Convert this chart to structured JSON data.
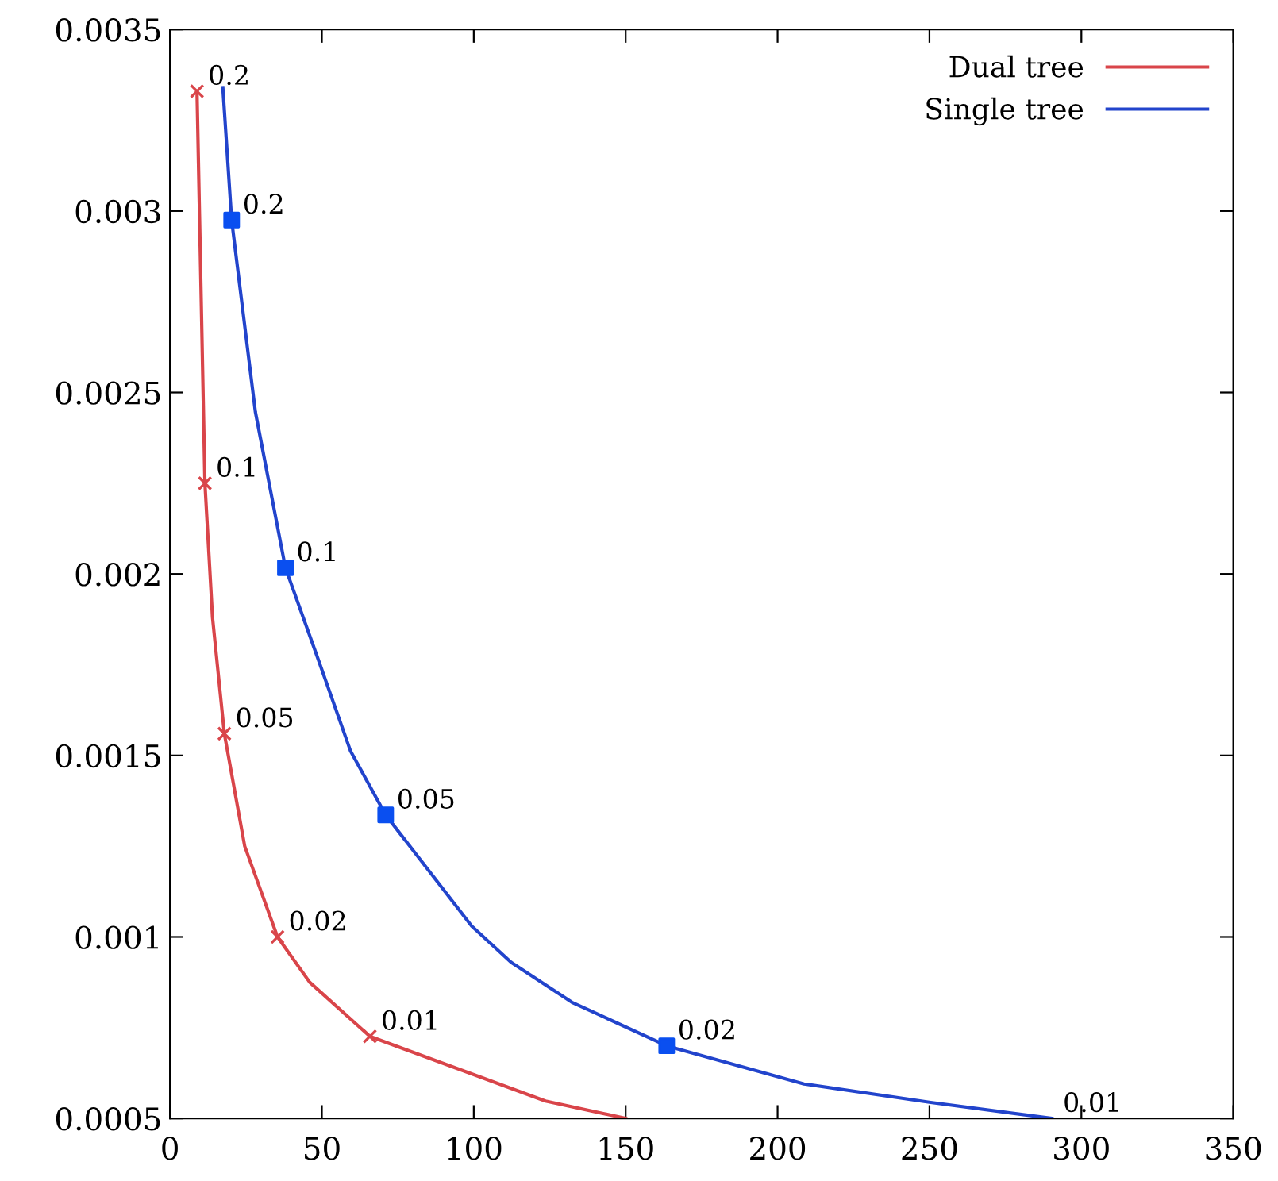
{
  "chart_data": {
    "type": "line",
    "xlim": [
      0,
      350
    ],
    "ylim": [
      0.0005,
      0.0035
    ],
    "xticks": [
      0,
      50,
      100,
      150,
      200,
      250,
      300,
      350
    ],
    "yticks": [
      0.0005,
      0.001,
      0.0015,
      0.002,
      0.0025,
      0.003,
      0.0035
    ],
    "legend": "top right",
    "grid": false,
    "marker": "none",
    "series": [
      {
        "name": "Dual tree",
        "color": "#d9454a",
        "x": [
          8.9,
          11.5,
          14.0,
          17.9,
          24.6,
          35.4,
          46,
          65.8,
          123.6,
          150
        ],
        "values": [
          0.00333,
          0.00225,
          0.00188,
          0.00156,
          0.00125,
          0.001,
          0.000875,
          0.000726,
          0.000548,
          0.0005
        ]
      },
      {
        "name": "Single tree",
        "color": "#2244cc",
        "x": [
          17.4,
          20.3,
          28.1,
          38.0,
          49,
          59.4,
          71.0,
          99.3,
          112.3,
          132.3,
          163.5,
          208.7,
          250.4,
          290.3
        ],
        "values": [
          0.00334,
          0.002975,
          0.002447,
          0.002017,
          0.00176,
          0.001513,
          0.001336,
          0.00103,
          0.00093,
          0.00082,
          0.0007,
          0.000595,
          0.000544,
          0.0005
        ]
      },
      {
        "type": "scatter",
        "marker": "cross",
        "color": "#d9454a",
        "x": [
          8.9,
          11.5,
          17.9,
          35.4,
          65.8
        ],
        "values": [
          0.00333,
          0.00225,
          0.00156,
          0.001,
          0.000726
        ]
      },
      {
        "type": "scatter",
        "marker": "square",
        "color": "#0a4ff0",
        "x": [
          20.3,
          38.0,
          71.0,
          163.5
        ],
        "values": [
          0.002975,
          0.002017,
          0.001336,
          0.0007
        ]
      }
    ],
    "annotations": [
      {
        "text": "0.2",
        "x": 8.9,
        "y": 0.00333
      },
      {
        "text": "0.1",
        "x": 11.5,
        "y": 0.00225
      },
      {
        "text": "0.05",
        "x": 17.9,
        "y": 0.00156
      },
      {
        "text": "0.02",
        "x": 35.4,
        "y": 0.001
      },
      {
        "text": "0.01",
        "x": 65.8,
        "y": 0.000726
      },
      {
        "text": "0.2",
        "x": 20.3,
        "y": 0.002975
      },
      {
        "text": "0.1",
        "x": 38.0,
        "y": 0.002017
      },
      {
        "text": "0.05",
        "x": 71.0,
        "y": 0.001336
      },
      {
        "text": "0.02",
        "x": 163.5,
        "y": 0.0007
      },
      {
        "text": "0.01",
        "x": 290.3,
        "y": 0.0005
      }
    ]
  }
}
